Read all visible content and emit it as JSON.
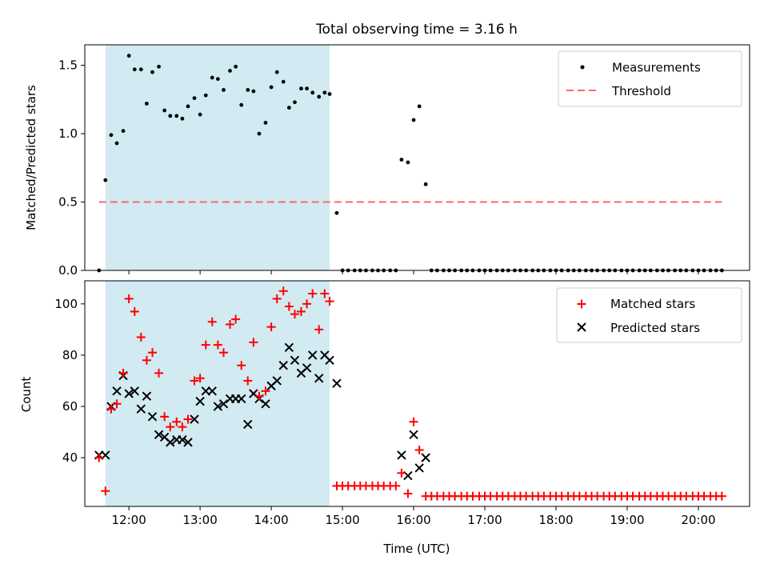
{
  "figure": {
    "title": "Total observing time = 3.16 h",
    "colors": {
      "highlight": "#add8e6",
      "threshold": "#ff6666",
      "matched": "#ff0000",
      "predicted": "#000000",
      "measurements": "#000000"
    }
  },
  "chart_data": [
    {
      "type": "scatter",
      "ylabel": "Matched/Predicted stars",
      "ylim": [
        0,
        1.65
      ],
      "yticks": [
        0,
        0.5,
        1.0,
        1.5
      ],
      "ytick_labels": [
        "0.0",
        "0.5",
        "1.0",
        "1.5"
      ],
      "xlim": [
        11.38,
        20.72
      ],
      "xticks": [
        12,
        13,
        14,
        15,
        16,
        17,
        18,
        19,
        20
      ],
      "highlight_span": [
        11.67,
        14.82
      ],
      "legend": {
        "position": "top-right",
        "entries": [
          "Measurements",
          "Threshold"
        ]
      },
      "threshold": {
        "name": "Threshold",
        "y": 0.5,
        "x": [
          11.58,
          20.33
        ]
      },
      "series": [
        {
          "name": "Measurements",
          "marker": "dot",
          "x": [
            11.58,
            11.67,
            11.75,
            11.83,
            11.92,
            12.0,
            12.08,
            12.17,
            12.25,
            12.33,
            12.42,
            12.5,
            12.58,
            12.67,
            12.75,
            12.83,
            12.92,
            13.0,
            13.08,
            13.17,
            13.25,
            13.33,
            13.42,
            13.5,
            13.58,
            13.67,
            13.75,
            13.83,
            13.92,
            14.0,
            14.08,
            14.17,
            14.25,
            14.33,
            14.42,
            14.5,
            14.58,
            14.67,
            14.75,
            14.82,
            14.92,
            15.0,
            15.08,
            15.17,
            15.25,
            15.33,
            15.42,
            15.5,
            15.58,
            15.67,
            15.75,
            15.83,
            15.92,
            16.0,
            16.08,
            16.17,
            16.25,
            16.33,
            16.42,
            16.5,
            16.58,
            16.67,
            16.75,
            16.83,
            16.92,
            17.0,
            17.08,
            17.17,
            17.25,
            17.33,
            17.42,
            17.5,
            17.58,
            17.67,
            17.75,
            17.83,
            17.92,
            18.0,
            18.08,
            18.17,
            18.25,
            18.33,
            18.42,
            18.5,
            18.58,
            18.67,
            18.75,
            18.83,
            18.92,
            19.0,
            19.08,
            19.17,
            19.25,
            19.33,
            19.42,
            19.5,
            19.58,
            19.67,
            19.75,
            19.83,
            19.92,
            20.0,
            20.08,
            20.17,
            20.25,
            20.33
          ],
          "y": [
            0,
            0.66,
            0.99,
            0.93,
            1.02,
            1.57,
            1.47,
            1.47,
            1.22,
            1.45,
            1.49,
            1.17,
            1.13,
            1.13,
            1.11,
            1.2,
            1.26,
            1.14,
            1.28,
            1.41,
            1.4,
            1.32,
            1.46,
            1.49,
            1.21,
            1.32,
            1.31,
            1.0,
            1.08,
            1.34,
            1.45,
            1.38,
            1.19,
            1.23,
            1.33,
            1.33,
            1.3,
            1.27,
            1.3,
            1.29,
            0.42,
            0,
            0,
            0,
            0,
            0,
            0,
            0,
            0,
            0,
            0,
            0.81,
            0.79,
            1.1,
            1.2,
            0.63,
            0,
            0,
            0,
            0,
            0,
            0,
            0,
            0,
            0,
            0,
            0,
            0,
            0,
            0,
            0,
            0,
            0,
            0,
            0,
            0,
            0,
            0,
            0,
            0,
            0,
            0,
            0,
            0,
            0,
            0,
            0,
            0,
            0,
            0,
            0,
            0,
            0,
            0,
            0,
            0,
            0,
            0,
            0,
            0,
            0,
            0,
            0,
            0,
            0,
            0
          ]
        }
      ]
    },
    {
      "type": "scatter",
      "xlabel": "Time (UTC)",
      "ylabel": "Count",
      "ylim": [
        21,
        109
      ],
      "yticks": [
        40,
        60,
        80,
        100
      ],
      "xlim": [
        11.38,
        20.72
      ],
      "xticks": [
        12,
        13,
        14,
        15,
        16,
        17,
        18,
        19,
        20
      ],
      "xtick_labels": [
        "12:00",
        "13:00",
        "14:00",
        "15:00",
        "16:00",
        "17:00",
        "18:00",
        "19:00",
        "20:00"
      ],
      "highlight_span": [
        11.67,
        14.82
      ],
      "legend": {
        "position": "top-right",
        "entries": [
          "Matched stars",
          "Predicted stars"
        ]
      },
      "series": [
        {
          "name": "Matched stars",
          "marker": "plus",
          "x": [
            11.58,
            11.67,
            11.75,
            11.83,
            11.92,
            12.0,
            12.08,
            12.17,
            12.25,
            12.33,
            12.42,
            12.5,
            12.58,
            12.67,
            12.75,
            12.83,
            12.92,
            13.0,
            13.08,
            13.17,
            13.25,
            13.33,
            13.42,
            13.5,
            13.58,
            13.67,
            13.75,
            13.83,
            13.92,
            14.0,
            14.08,
            14.17,
            14.25,
            14.33,
            14.42,
            14.5,
            14.58,
            14.67,
            14.75,
            14.82,
            14.92,
            15.0,
            15.08,
            15.17,
            15.25,
            15.33,
            15.42,
            15.5,
            15.58,
            15.67,
            15.75,
            15.83,
            15.92,
            16.0,
            16.08,
            16.17,
            16.25,
            16.33,
            16.42,
            16.5,
            16.58,
            16.67,
            16.75,
            16.83,
            16.92,
            17.0,
            17.08,
            17.17,
            17.25,
            17.33,
            17.42,
            17.5,
            17.58,
            17.67,
            17.75,
            17.83,
            17.92,
            18.0,
            18.08,
            18.17,
            18.25,
            18.33,
            18.42,
            18.5,
            18.58,
            18.67,
            18.75,
            18.83,
            18.92,
            19.0,
            19.08,
            19.17,
            19.25,
            19.33,
            19.42,
            19.5,
            19.58,
            19.67,
            19.75,
            19.83,
            19.92,
            20.0,
            20.08,
            20.17,
            20.25,
            20.33
          ],
          "y": [
            40,
            27,
            59,
            61,
            73,
            102,
            97,
            87,
            78,
            81,
            73,
            56,
            52,
            54,
            52,
            55,
            70,
            71,
            84,
            93,
            84,
            81,
            92,
            94,
            76,
            70,
            85,
            64,
            66,
            91,
            102,
            105,
            99,
            96,
            97,
            100,
            104,
            90,
            104,
            101,
            29,
            29,
            29,
            29,
            29,
            29,
            29,
            29,
            29,
            29,
            29,
            34,
            26,
            54,
            43,
            25,
            25,
            25,
            25,
            25,
            25,
            25,
            25,
            25,
            25,
            25,
            25,
            25,
            25,
            25,
            25,
            25,
            25,
            25,
            25,
            25,
            25,
            25,
            25,
            25,
            25,
            25,
            25,
            25,
            25,
            25,
            25,
            25,
            25,
            25,
            25,
            25,
            25,
            25,
            25,
            25,
            25,
            25,
            25,
            25,
            25,
            25,
            25,
            25,
            25,
            25
          ]
        },
        {
          "name": "Predicted stars",
          "marker": "x",
          "x": [
            11.58,
            11.67,
            11.75,
            11.83,
            11.92,
            12.0,
            12.08,
            12.17,
            12.25,
            12.33,
            12.42,
            12.5,
            12.58,
            12.67,
            12.75,
            12.83,
            12.92,
            13.0,
            13.08,
            13.17,
            13.25,
            13.33,
            13.42,
            13.5,
            13.58,
            13.67,
            13.75,
            13.83,
            13.92,
            14.0,
            14.08,
            14.17,
            14.25,
            14.33,
            14.42,
            14.5,
            14.58,
            14.67,
            14.75,
            14.82,
            14.92,
            15.83,
            15.92,
            16.0,
            16.08,
            16.17
          ],
          "y": [
            41,
            41,
            60,
            66,
            72,
            65,
            66,
            59,
            64,
            56,
            49,
            48,
            46,
            47,
            47,
            46,
            55,
            62,
            66,
            66,
            60,
            61,
            63,
            63,
            63,
            53,
            65,
            63,
            61,
            68,
            70,
            76,
            83,
            78,
            73,
            75,
            80,
            71,
            80,
            78,
            69,
            41,
            33,
            49,
            36,
            40
          ]
        }
      ]
    }
  ]
}
